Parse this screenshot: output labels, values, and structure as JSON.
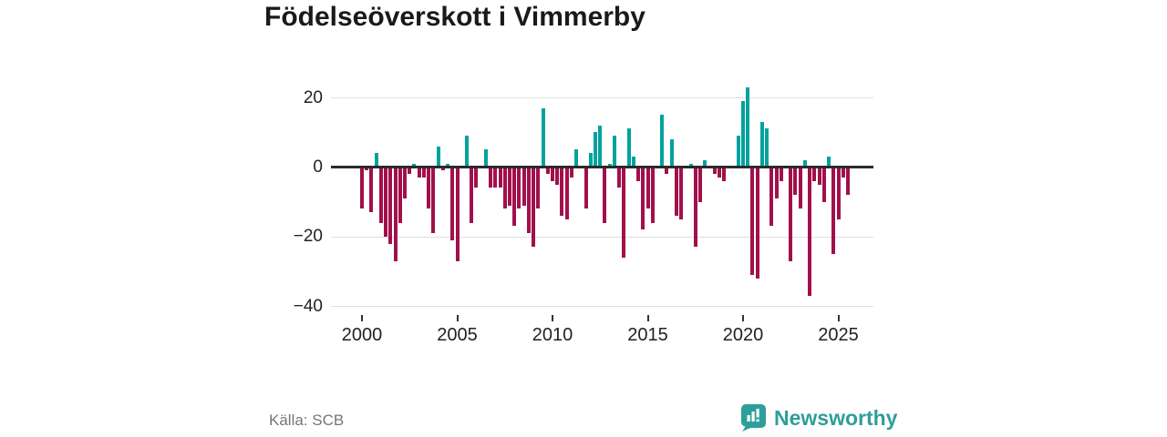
{
  "title": "Födelseöverskott i Vimmerby",
  "source": "Källa: SCB",
  "brand": {
    "name": "Newsworthy"
  },
  "colors": {
    "positive_bar": "#00a29e",
    "negative_bar": "#a2104b",
    "brand_teal": "#2e9e9a",
    "title_text": "#1a1a1a",
    "axis_text": "#222222",
    "gridline": "#dedede",
    "zero_line": "#2b2b2b",
    "source_text": "#767676"
  },
  "y_axis": {
    "ticks": [
      {
        "value": 20,
        "label": "20"
      },
      {
        "value": 0,
        "label": "0"
      },
      {
        "value": -20,
        "label": "−20"
      },
      {
        "value": -40,
        "label": "−40"
      }
    ]
  },
  "x_axis": {
    "ticks": [
      {
        "year": 2000,
        "label": "2000"
      },
      {
        "year": 2005,
        "label": "2005"
      },
      {
        "year": 2010,
        "label": "2010"
      },
      {
        "year": 2015,
        "label": "2015"
      },
      {
        "year": 2020,
        "label": "2020"
      },
      {
        "year": 2025,
        "label": "2025"
      }
    ]
  },
  "chart_data": {
    "type": "bar",
    "title": "Födelseöverskott i Vimmerby",
    "xlabel": "",
    "ylabel": "",
    "ylim": [
      -40,
      25
    ],
    "grid": "horizontal",
    "legend": "none",
    "frequency": "quarterly",
    "x_start": "2000-Q1",
    "x_end": "2025-Q4",
    "positive_color_meaning": "birth surplus",
    "negative_color_meaning": "birth deficit",
    "values": [
      -12,
      -1,
      -13,
      4,
      -16,
      -20,
      -22,
      -27,
      -16,
      -9,
      -2,
      1,
      -3,
      -3,
      -12,
      -19,
      6,
      -1,
      1,
      -21,
      -27,
      0,
      9,
      -16,
      -6,
      0,
      5,
      -6,
      -6,
      -6,
      -12,
      -11,
      -17,
      -12,
      -11,
      -19,
      -23,
      -12,
      17,
      -2,
      -4,
      -5,
      -14,
      -15,
      -3,
      5,
      0,
      -12,
      4,
      10,
      12,
      -16,
      1,
      9,
      -6,
      -26,
      11,
      3,
      -4,
      -18,
      -12,
      -16,
      0,
      15,
      -2,
      8,
      -14,
      -15,
      0,
      1,
      -23,
      -10,
      2,
      0,
      -2,
      -3,
      -4,
      0,
      0,
      9,
      19,
      23,
      -31,
      -32,
      13,
      11,
      -17,
      -9,
      -4,
      0,
      -27,
      -8,
      -12,
      2,
      -37,
      -4,
      -5,
      -10,
      3,
      -25,
      -15,
      -3,
      -8,
      0
    ]
  }
}
